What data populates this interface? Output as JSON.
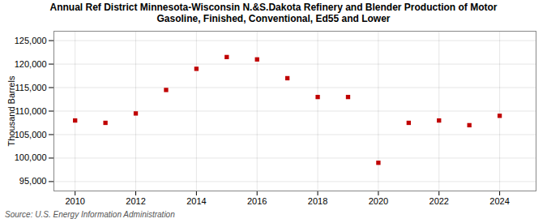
{
  "chart_data": {
    "type": "scatter",
    "title": "Annual Ref District Minnesota-Wisconsin N.&S.Dakota Refinery and Blender Production of Motor\nGasoline, Finished, Conventional, Ed55 and Lower",
    "ylabel": "Thousand Barrels",
    "annotations": [
      "Source: U.S. Energy Information Administration"
    ],
    "x": [
      2010,
      2011,
      2012,
      2013,
      2014,
      2015,
      2016,
      2017,
      2018,
      2019,
      2020,
      2021,
      2022,
      2023,
      2024
    ],
    "values": [
      108000,
      107500,
      109500,
      114500,
      119000,
      121500,
      121000,
      117000,
      113000,
      113000,
      99000,
      107500,
      108000,
      107000,
      109000
    ],
    "color": "#c00000",
    "marker": "square",
    "grid": true,
    "xlim": [
      2009.3,
      2025.2
    ],
    "xticks": [
      2010,
      2012,
      2014,
      2016,
      2018,
      2020,
      2022,
      2024
    ],
    "ylim": [
      93000,
      127000
    ],
    "yticks": [
      {
        "value": 95000,
        "label": "95,000"
      },
      {
        "value": 100000,
        "label": "100,000"
      },
      {
        "value": 105000,
        "label": "105,000"
      },
      {
        "value": 110000,
        "label": "110,000"
      },
      {
        "value": 115000,
        "label": "115,000"
      },
      {
        "value": 120000,
        "label": "120,000"
      },
      {
        "value": 125000,
        "label": "125,000"
      }
    ]
  }
}
